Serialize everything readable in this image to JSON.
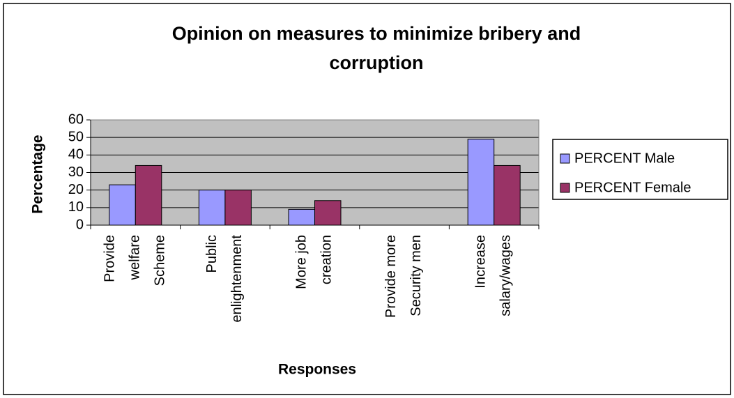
{
  "chart_data": {
    "type": "bar",
    "title": "Opinion on measures to minimize bribery and\ncorruption",
    "x_label": "Responses",
    "y_label": "Percentage",
    "categories": [
      "Provide\nwelfare\nScheme",
      "Public\nenlightenment",
      "More job\ncreation",
      "Provide more\nSecurity men",
      "Increase\nsalary/wages"
    ],
    "series": [
      {
        "name": "PERCENT Male",
        "color": "#9999ff",
        "values": [
          23,
          20,
          9,
          0,
          49
        ]
      },
      {
        "name": "PERCENT Female",
        "color": "#993366",
        "values": [
          34,
          20,
          14,
          0,
          34
        ]
      }
    ],
    "ylim": [
      0,
      60
    ],
    "yticks": [
      0,
      10,
      20,
      30,
      40,
      50,
      60
    ],
    "grid": true,
    "plot_background": "#c0c0c0",
    "legend": "right"
  }
}
